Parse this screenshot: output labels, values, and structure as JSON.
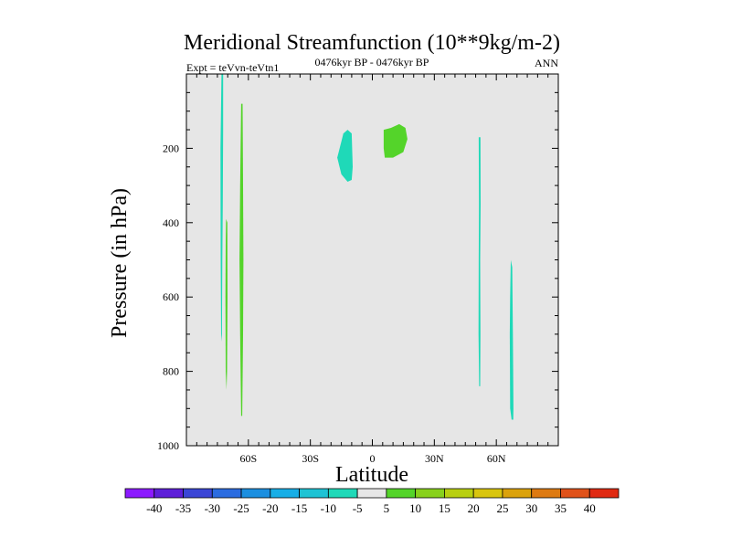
{
  "chart_data": {
    "type": "contour",
    "title": "Meridional Streamfunction (10**9kg/m-2)",
    "subtitle": "0476kyr BP - 0476kyr BP",
    "left_label": "Expt = teVvn-teVtn1",
    "right_label": "ANN",
    "xlabel": "Latitude",
    "ylabel": "Pressure (in hPa)",
    "xlim": [
      -90,
      90
    ],
    "ylim": [
      1000,
      0
    ],
    "x_ticks": [
      {
        "value": -60,
        "label": "60S"
      },
      {
        "value": -30,
        "label": "30S"
      },
      {
        "value": 0,
        "label": "0"
      },
      {
        "value": 30,
        "label": "30N"
      },
      {
        "value": 60,
        "label": "60N"
      }
    ],
    "y_ticks": [
      {
        "value": 200,
        "label": "200"
      },
      {
        "value": 400,
        "label": "400"
      },
      {
        "value": 600,
        "label": "600"
      },
      {
        "value": 800,
        "label": "800"
      },
      {
        "value": 1000,
        "label": "1000"
      }
    ],
    "background_color": "#e6e6e6",
    "colorbar": {
      "labels": [
        "-40",
        "-35",
        "-30",
        "-25",
        "-20",
        "-15",
        "-10",
        "-5",
        "5",
        "10",
        "15",
        "20",
        "25",
        "30",
        "35",
        "40"
      ],
      "colors": [
        "#8c1aff",
        "#5e1fd9",
        "#3b46d6",
        "#2b6ce0",
        "#1c8fe0",
        "#17aee6",
        "#1ec3d4",
        "#1fd9b8",
        "#e6e6e6",
        "#54d42a",
        "#88d11c",
        "#b8cf10",
        "#d9c50e",
        "#dba20c",
        "#dd7a12",
        "#e0521a",
        "#e02a12"
      ]
    },
    "regions": [
      {
        "value": -7.5,
        "color": "#1fd9b8",
        "points": [
          [
            -73,
            0
          ],
          [
            -72.2,
            0
          ],
          [
            -72.2,
            150
          ],
          [
            -72.4,
            350
          ],
          [
            -72.6,
            500
          ],
          [
            -72.8,
            700
          ],
          [
            -73.2,
            720
          ],
          [
            -73.4,
            500
          ],
          [
            -73.5,
            200
          ]
        ]
      },
      {
        "value": 7.5,
        "color": "#54d42a",
        "points": [
          [
            -70.8,
            390
          ],
          [
            -70.2,
            400
          ],
          [
            -70.1,
            600
          ],
          [
            -70.3,
            800
          ],
          [
            -70.6,
            850
          ],
          [
            -71,
            800
          ],
          [
            -71.1,
            600
          ],
          [
            -71,
            450
          ]
        ]
      },
      {
        "value": 7.5,
        "color": "#54d42a",
        "points": [
          [
            -63.5,
            80
          ],
          [
            -62.8,
            80
          ],
          [
            -62.6,
            300
          ],
          [
            -62.4,
            500
          ],
          [
            -62.6,
            700
          ],
          [
            -63,
            920
          ],
          [
            -63.5,
            920
          ],
          [
            -64,
            700
          ],
          [
            -64.3,
            500
          ],
          [
            -64,
            300
          ]
        ]
      },
      {
        "value": -7.5,
        "color": "#1fd9b8",
        "points": [
          [
            -17,
            225
          ],
          [
            -14,
            160
          ],
          [
            -12,
            150
          ],
          [
            -10,
            160
          ],
          [
            -9.5,
            250
          ],
          [
            -10,
            285
          ],
          [
            -12,
            290
          ],
          [
            -15,
            270
          ]
        ]
      },
      {
        "value": 7.5,
        "color": "#54d42a",
        "points": [
          [
            5.5,
            150
          ],
          [
            9,
            145
          ],
          [
            13,
            135
          ],
          [
            16,
            145
          ],
          [
            17,
            175
          ],
          [
            15,
            210
          ],
          [
            10,
            225
          ],
          [
            6,
            225
          ],
          [
            5.5,
            200
          ]
        ]
      },
      {
        "value": -7.5,
        "color": "#1fd9b8",
        "points": [
          [
            51.5,
            170
          ],
          [
            52.3,
            170
          ],
          [
            52.4,
            350
          ],
          [
            52.2,
            500
          ],
          [
            52.3,
            700
          ],
          [
            52.2,
            840
          ],
          [
            51.7,
            840
          ],
          [
            51.4,
            700
          ],
          [
            51.5,
            500
          ],
          [
            51.6,
            350
          ]
        ]
      },
      {
        "value": -7.5,
        "color": "#1fd9b8",
        "points": [
          [
            67,
            500
          ],
          [
            67.7,
            520
          ],
          [
            68,
            700
          ],
          [
            68.3,
            900
          ],
          [
            68.2,
            930
          ],
          [
            67.4,
            930
          ],
          [
            66.7,
            900
          ],
          [
            66.5,
            700
          ],
          [
            66.7,
            600
          ]
        ]
      }
    ]
  }
}
